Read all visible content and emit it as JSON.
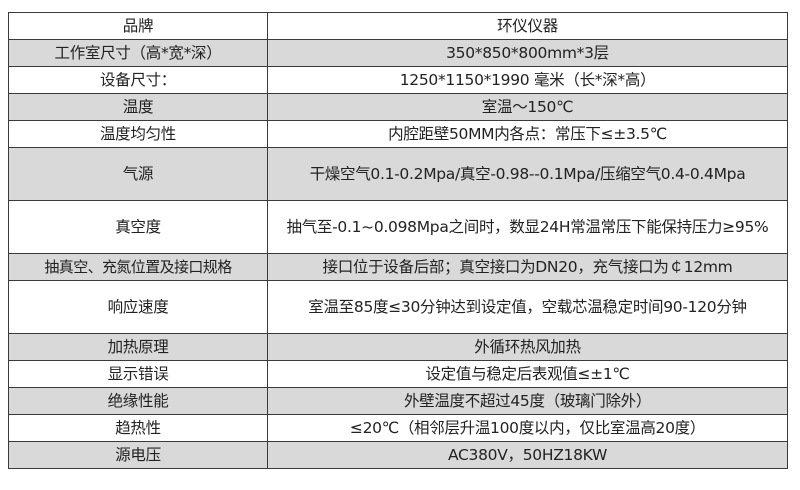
{
  "table": {
    "rows": [
      {
        "key": "品牌",
        "value": "环仪仪器",
        "shaded": false
      },
      {
        "key": "工作室尺寸（高*宽*深）",
        "value": "350*850*800mm*3层",
        "shaded": true
      },
      {
        "key": "设备尺寸：",
        "value": "1250*1150*1990 毫米（长*深*高）",
        "shaded": false
      },
      {
        "key": "温度",
        "value": "室温～150℃",
        "shaded": true
      },
      {
        "key": "温度均匀性",
        "value": "内腔距壁50MM内各点：常压下≤±3.5℃",
        "shaded": false
      },
      {
        "key": "气源",
        "value": "干燥空气0.1-0.2Mpa/真空-0.98--0.1Mpa/压缩空气0.4-0.4Mpa",
        "shaded": true
      },
      {
        "key": "真空度",
        "value": "抽气至-0.1~0.098Mpa之间时，数显24H常温常压下能保持压力≥95%",
        "shaded": false
      },
      {
        "key": "抽真空、充氮位置及接口规格",
        "value": "接口位于设备后部；真空接口为DN20，充气接口为￠12mm",
        "shaded": true
      },
      {
        "key": "响应速度",
        "value": "室温至85度≤30分钟达到设定值，空载芯温稳定时间90-120分钟",
        "shaded": false
      },
      {
        "key": "加热原理",
        "value": "外循环热风加热",
        "shaded": true
      },
      {
        "key": "显示错误",
        "value": "设定值与稳定后表观值≤±1℃",
        "shaded": false
      },
      {
        "key": "绝缘性能",
        "value": "外壁温度不超过45度（玻璃门除外）",
        "shaded": true
      },
      {
        "key": "趋热性",
        "value": "≤20℃（相邻层升温100度以内，仅比室温高20度）",
        "shaded": false
      },
      {
        "key": "源电压",
        "value": "AC380V，50HZ18KW",
        "shaded": true
      }
    ]
  },
  "colors": {
    "shaded_row": "#d9d9d9",
    "border": "#3a3a3a"
  }
}
